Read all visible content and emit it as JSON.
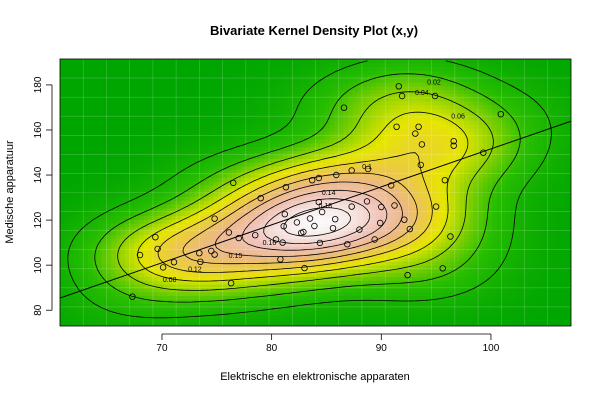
{
  "chart_data": {
    "type": "scatter",
    "title": "Bivariate Kernel Density Plot (x,y)",
    "xlabel": "Elektrische en elektronische apparaten",
    "ylabel": "Medische apparatuur",
    "xlim": [
      60.7,
      107.3
    ],
    "ylim": [
      73,
      191.5
    ],
    "x_ticks": [
      70,
      80,
      90,
      100
    ],
    "y_ticks": [
      80,
      100,
      120,
      140,
      160,
      180
    ],
    "grid": true,
    "contour_labels": [
      {
        "text": "0.02",
        "x": 94.8,
        "y": 181.2
      },
      {
        "text": "0.04",
        "x": 93.7,
        "y": 176.6
      },
      {
        "text": "0.06",
        "x": 97.0,
        "y": 166.1
      },
      {
        "text": "0.1",
        "x": 88.7,
        "y": 143.9
      },
      {
        "text": "0.14",
        "x": 85.2,
        "y": 132.3
      },
      {
        "text": "0.18",
        "x": 84.9,
        "y": 126.4
      },
      {
        "text": "0.16",
        "x": 79.8,
        "y": 110.0
      },
      {
        "text": "0.15",
        "x": 76.7,
        "y": 104.2
      },
      {
        "text": "0.12",
        "x": 73.0,
        "y": 98.3
      },
      {
        "text": "0.08",
        "x": 70.7,
        "y": 93.7
      }
    ],
    "regression_line": {
      "x": [
        60.7,
        107.3
      ],
      "y": [
        85.4,
        163.9
      ]
    },
    "points": [
      [
        67.3,
        86.0
      ],
      [
        68.0,
        104.5
      ],
      [
        69.6,
        107.2
      ],
      [
        69.4,
        112.4
      ],
      [
        70.1,
        99.0
      ],
      [
        71.1,
        101.3
      ],
      [
        73.4,
        105.3
      ],
      [
        73.5,
        101.5
      ],
      [
        74.5,
        106.3
      ],
      [
        74.8,
        104.7
      ],
      [
        74.8,
        120.6
      ],
      [
        76.1,
        114.5
      ],
      [
        76.3,
        92.0
      ],
      [
        76.5,
        136.5
      ],
      [
        77.0,
        112.0
      ],
      [
        78.5,
        113.3
      ],
      [
        79.0,
        129.7
      ],
      [
        80.4,
        111.4
      ],
      [
        80.8,
        102.6
      ],
      [
        81.0,
        110.0
      ],
      [
        81.1,
        117.3
      ],
      [
        81.2,
        122.6
      ],
      [
        81.3,
        134.6
      ],
      [
        82.3,
        119.0
      ],
      [
        82.7,
        114.3
      ],
      [
        82.9,
        114.7
      ],
      [
        83.0,
        98.7
      ],
      [
        83.5,
        120.7
      ],
      [
        83.7,
        137.7
      ],
      [
        83.9,
        117.4
      ],
      [
        84.3,
        138.7
      ],
      [
        84.4,
        109.9
      ],
      [
        84.6,
        123.6
      ],
      [
        84.3,
        128.0
      ],
      [
        85.6,
        116.4
      ],
      [
        85.8,
        120.4
      ],
      [
        85.9,
        140.0
      ],
      [
        86.6,
        169.9
      ],
      [
        86.9,
        109.3
      ],
      [
        87.3,
        126.0
      ],
      [
        87.3,
        142.0
      ],
      [
        88.0,
        115.8
      ],
      [
        88.7,
        128.3
      ],
      [
        88.8,
        142.7
      ],
      [
        89.4,
        111.4
      ],
      [
        89.9,
        118.7
      ],
      [
        90.0,
        125.8
      ],
      [
        90.9,
        135.4
      ],
      [
        91.2,
        126.5
      ],
      [
        91.4,
        161.4
      ],
      [
        91.6,
        179.4
      ],
      [
        91.9,
        175.1
      ],
      [
        92.1,
        120.2
      ],
      [
        92.4,
        95.6
      ],
      [
        92.6,
        116.0
      ],
      [
        93.1,
        158.4
      ],
      [
        93.4,
        161.4
      ],
      [
        93.7,
        153.6
      ],
      [
        93.6,
        144.5
      ],
      [
        94.9,
        175.1
      ],
      [
        95.0,
        126.0
      ],
      [
        95.6,
        98.6
      ],
      [
        95.8,
        137.7
      ],
      [
        96.3,
        112.7
      ],
      [
        96.6,
        155.0
      ],
      [
        96.6,
        153.0
      ],
      [
        99.3,
        149.9
      ],
      [
        100.9,
        167.0
      ]
    ]
  }
}
